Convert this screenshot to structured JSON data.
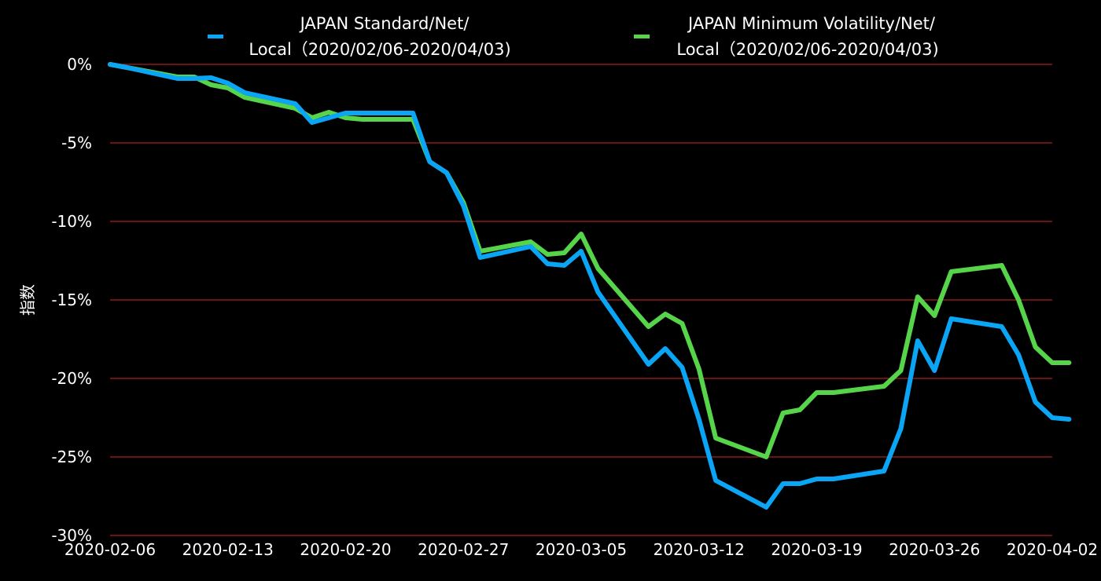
{
  "chart_data": {
    "type": "line",
    "ylabel": "指数",
    "y_unit": "%",
    "ylim": [
      -30,
      0
    ],
    "y_ticks": [
      0,
      -5,
      -10,
      -15,
      -20,
      -25,
      -30
    ],
    "y_tick_labels": [
      "0%",
      "-5%",
      "-10%",
      "-15%",
      "-20%",
      "-25%",
      "-30%"
    ],
    "x_tick_labels": [
      "2020-02-06",
      "2020-02-13",
      "2020-02-20",
      "2020-02-27",
      "2020-03-05",
      "2020-03-12",
      "2020-03-19",
      "2020-03-26",
      "2020-04-02"
    ],
    "grid": "horizontal",
    "grid_color": "#8b1a1a",
    "legend_position": "top",
    "x": [
      "2020-02-06",
      "2020-02-07",
      "2020-02-10",
      "2020-02-11",
      "2020-02-12",
      "2020-02-13",
      "2020-02-14",
      "2020-02-17",
      "2020-02-18",
      "2020-02-19",
      "2020-02-20",
      "2020-02-21",
      "2020-02-24",
      "2020-02-25",
      "2020-02-26",
      "2020-02-27",
      "2020-02-28",
      "2020-03-02",
      "2020-03-03",
      "2020-03-04",
      "2020-03-05",
      "2020-03-06",
      "2020-03-09",
      "2020-03-10",
      "2020-03-11",
      "2020-03-12",
      "2020-03-13",
      "2020-03-16",
      "2020-03-17",
      "2020-03-18",
      "2020-03-19",
      "2020-03-20",
      "2020-03-23",
      "2020-03-24",
      "2020-03-25",
      "2020-03-26",
      "2020-03-27",
      "2020-03-30",
      "2020-03-31",
      "2020-04-01",
      "2020-04-02",
      "2020-04-03"
    ],
    "series": [
      {
        "name": "JAPAN Standard/Net/Local (2020/02/06-2020/04/03)",
        "legend_line1": "JAPAN Standard/Net/",
        "legend_line2": "Local（2020/02/06-2020/04/03)",
        "color": "#0ba5f5",
        "values": [
          0,
          -0.2,
          -0.9,
          -0.9,
          -0.85,
          -1.2,
          -1.8,
          -2.5,
          -3.7,
          -3.4,
          -3.1,
          -3.1,
          -3.1,
          -6.2,
          -6.9,
          -9.0,
          -12.3,
          -11.6,
          -12.7,
          -12.8,
          -11.9,
          -14.5,
          -19.1,
          -18.1,
          -19.3,
          -22.6,
          -26.5,
          -28.2,
          -26.7,
          -26.7,
          -26.4,
          -26.4,
          -25.9,
          -23.2,
          -17.6,
          -19.5,
          -16.2,
          -16.7,
          -18.5,
          -21.5,
          -22.5,
          -22.6
        ]
      },
      {
        "name": "JAPAN Minimum Volatility/Net/Local (2020/02/06-2020/04/03)",
        "legend_line1": "JAPAN Minimum Volatility/Net/",
        "legend_line2": "Local（2020/02/06-2020/04/03)",
        "color": "#57d54a",
        "values": [
          0,
          -0.2,
          -0.8,
          -0.8,
          -1.3,
          -1.5,
          -2.1,
          -2.8,
          -3.4,
          -3.05,
          -3.4,
          -3.5,
          -3.5,
          -6.2,
          -6.9,
          -8.8,
          -11.9,
          -11.3,
          -12.1,
          -12.0,
          -10.8,
          -13.0,
          -16.7,
          -15.9,
          -16.5,
          -19.4,
          -23.8,
          -25.0,
          -22.2,
          -22.0,
          -20.9,
          -20.9,
          -20.5,
          -19.5,
          -14.8,
          -16.0,
          -13.2,
          -12.8,
          -15.0,
          -18.0,
          -19.0,
          -19.0
        ]
      }
    ]
  }
}
